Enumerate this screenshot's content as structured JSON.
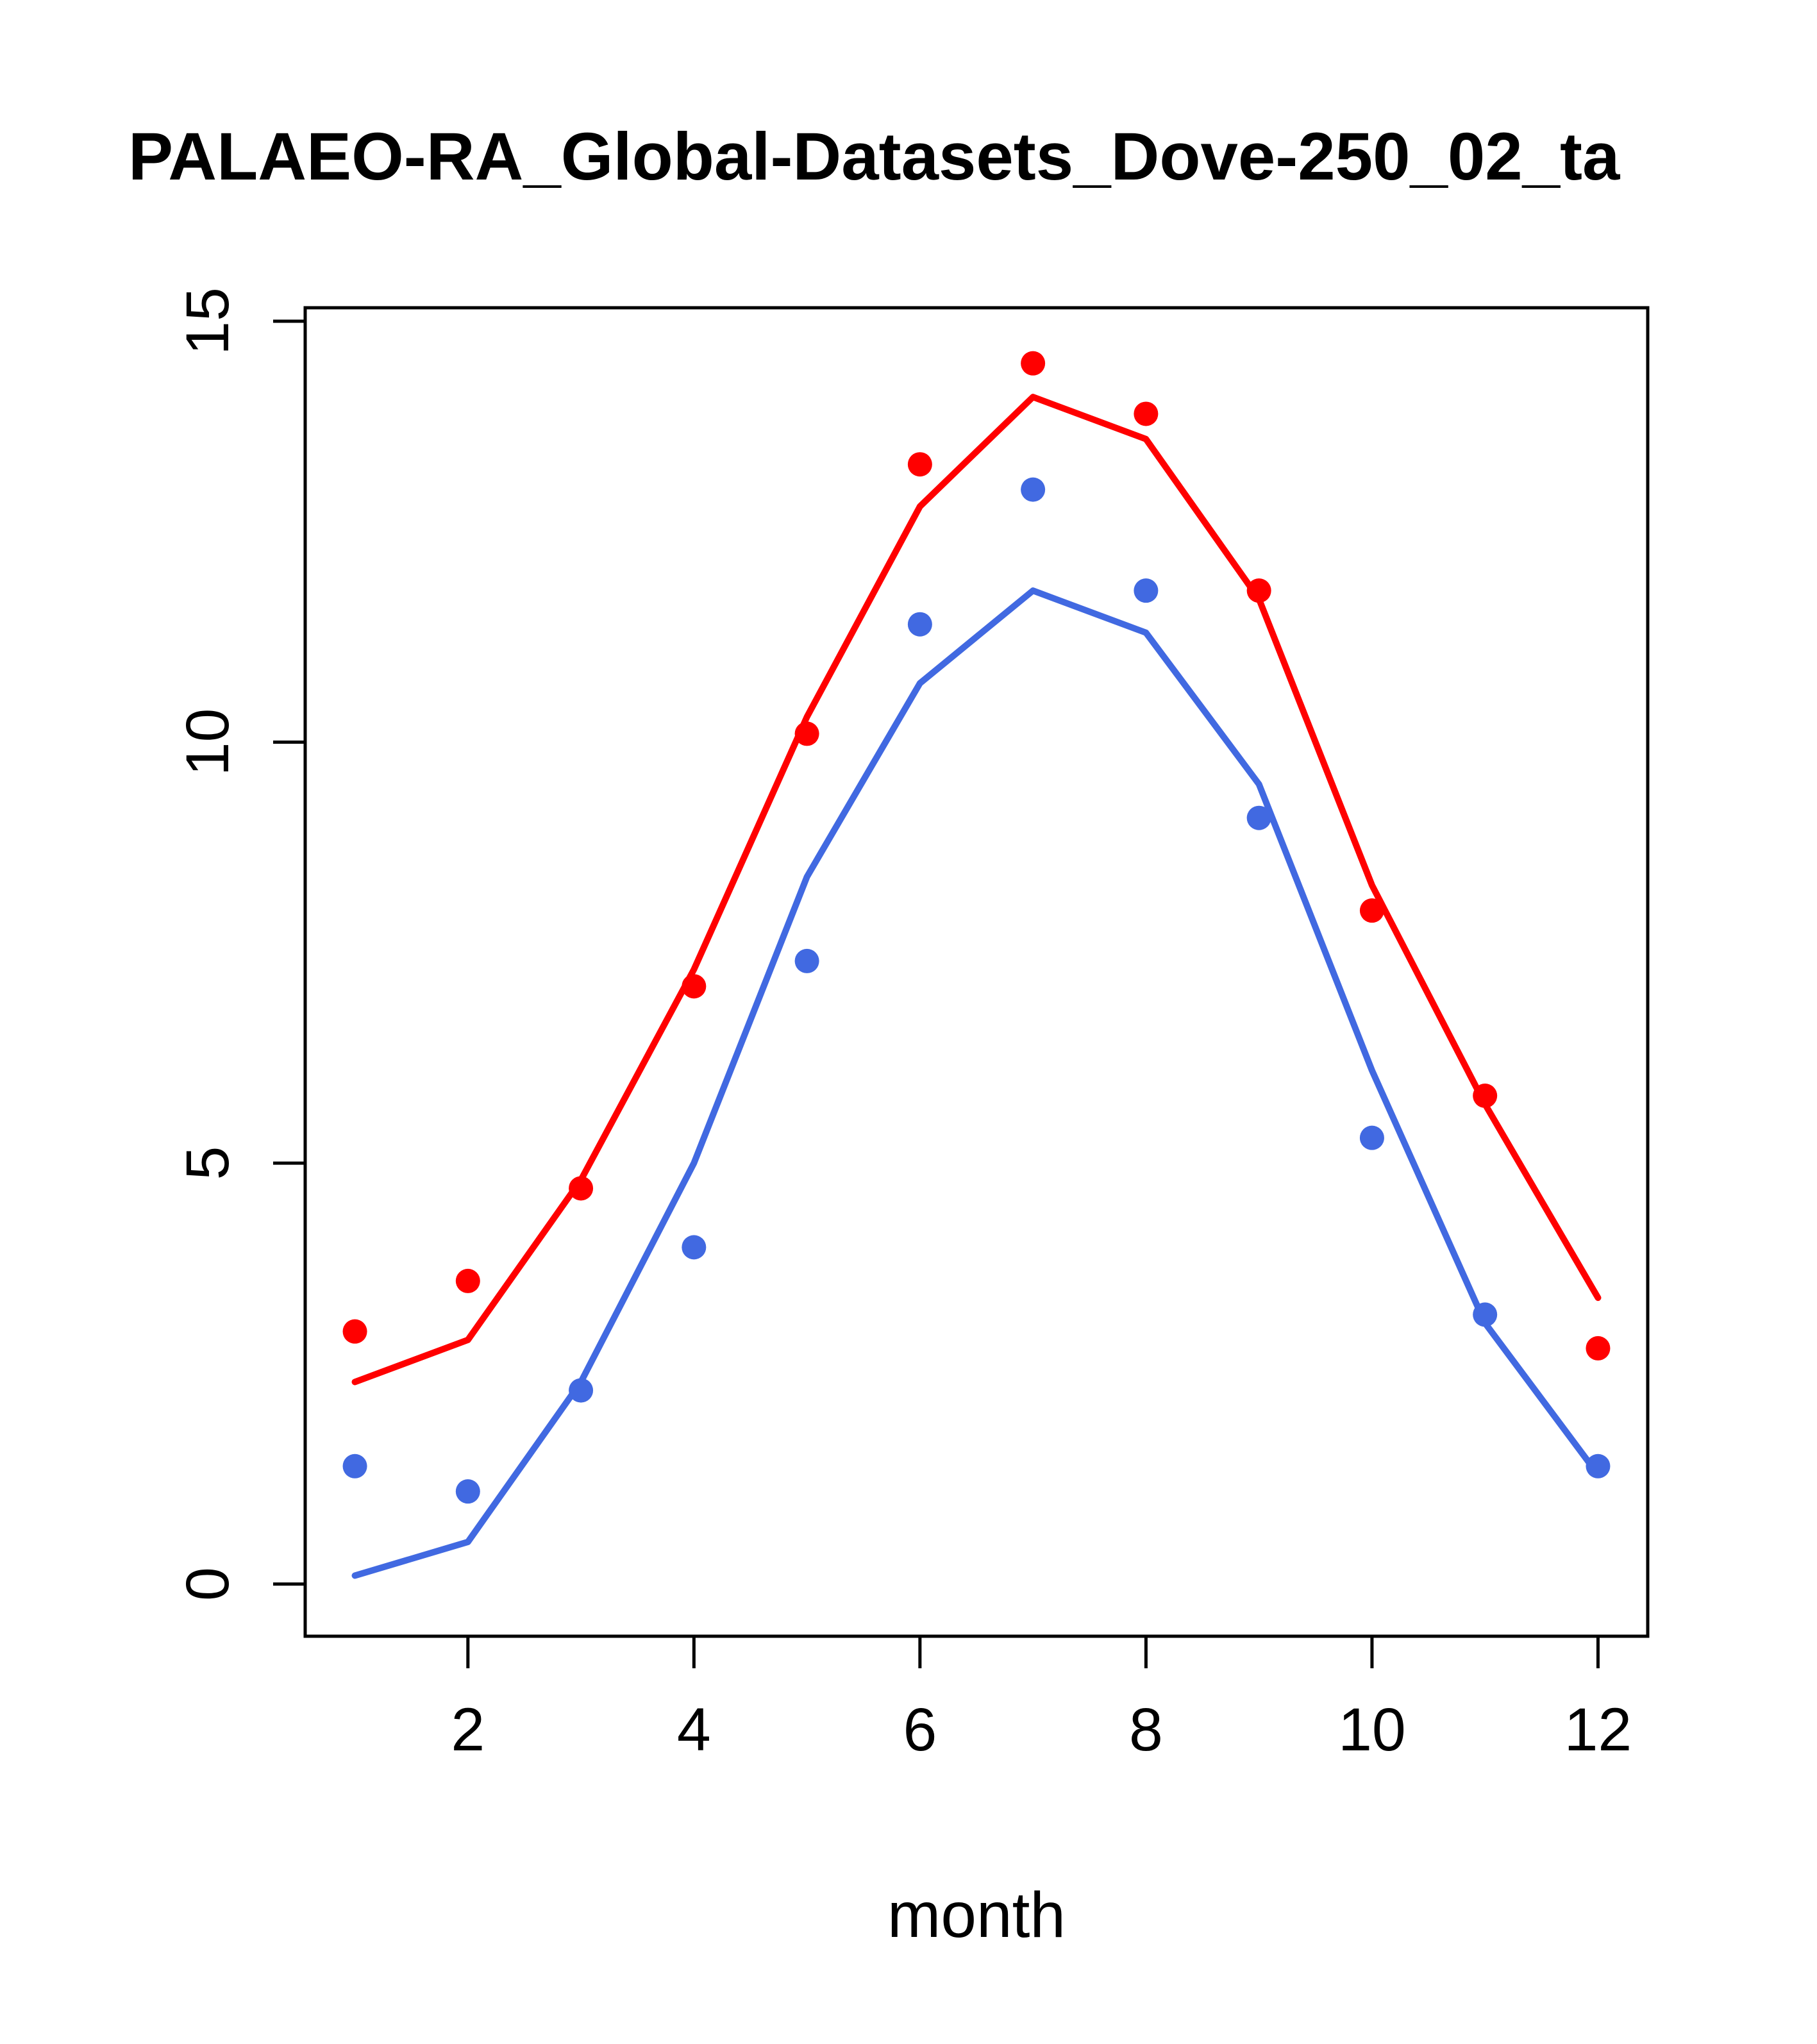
{
  "chart_data": {
    "type": "line",
    "title": "PALAEO-RA_Global-Datasets_Dove-250_02_ta",
    "xlabel": "month",
    "ylabel": "",
    "x": [
      1,
      2,
      3,
      4,
      5,
      6,
      7,
      8,
      9,
      10,
      11,
      12
    ],
    "x_ticks": [
      2,
      4,
      6,
      8,
      10,
      12
    ],
    "y_ticks": [
      0,
      5,
      10,
      15
    ],
    "xlim": [
      0.56,
      12.44
    ],
    "ylim": [
      -0.62,
      15.16
    ],
    "grid": false,
    "legend": "none",
    "colors": {
      "red": "#ff0000",
      "blue": "#4169e1",
      "axis": "#000000"
    },
    "series": [
      {
        "name": "red-line",
        "style": "line",
        "color": "#ff0000",
        "values": [
          2.4,
          2.9,
          4.8,
          7.3,
          10.3,
          12.8,
          14.1,
          13.6,
          11.7,
          8.3,
          5.7,
          3.4
        ]
      },
      {
        "name": "blue-line",
        "style": "line",
        "color": "#4169e1",
        "values": [
          0.1,
          0.5,
          2.4,
          5.0,
          8.4,
          10.7,
          11.8,
          11.3,
          9.5,
          6.1,
          3.1,
          1.3
        ]
      },
      {
        "name": "red-points",
        "style": "points",
        "color": "#ff0000",
        "values": [
          3.0,
          3.6,
          4.7,
          7.1,
          10.1,
          13.3,
          14.5,
          13.9,
          11.8,
          8.0,
          5.8,
          2.8
        ]
      },
      {
        "name": "blue-points",
        "style": "points",
        "color": "#4169e1",
        "values": [
          1.4,
          1.1,
          2.3,
          4.0,
          7.4,
          11.4,
          13.0,
          11.8,
          9.1,
          5.3,
          3.2,
          1.4
        ]
      }
    ]
  }
}
